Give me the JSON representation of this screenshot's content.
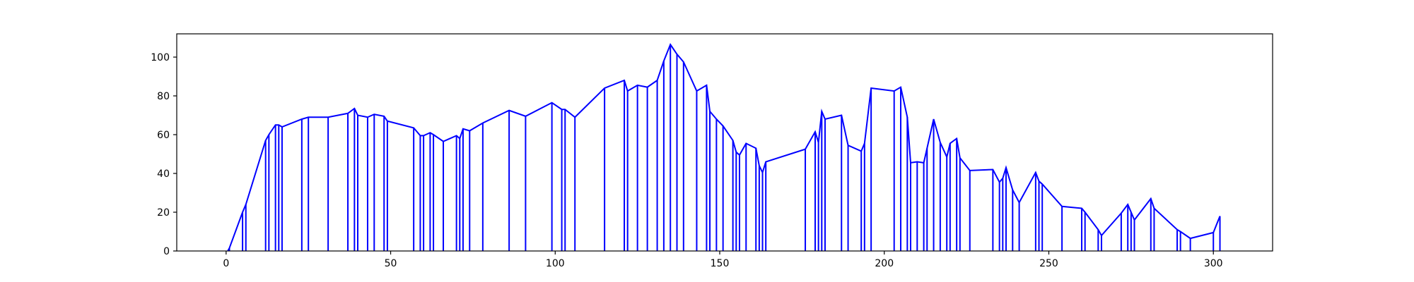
{
  "chart_data": {
    "type": "line",
    "title": "",
    "xlabel": "",
    "ylabel": "",
    "xlim": [
      -15,
      318
    ],
    "ylim": [
      0,
      112
    ],
    "xticks": [
      0,
      50,
      100,
      150,
      200,
      250,
      300
    ],
    "yticks": [
      0,
      20,
      40,
      60,
      80,
      100
    ],
    "grid": false,
    "legend": false,
    "series_color": "#0000ff",
    "drop_lines": true,
    "series": [
      {
        "points": [
          [
            0.5,
            0
          ],
          [
            1,
            1.5
          ],
          [
            5,
            20
          ],
          [
            6,
            24
          ],
          [
            12,
            57
          ],
          [
            13,
            60
          ],
          [
            15,
            65
          ],
          [
            16,
            65
          ],
          [
            17,
            64
          ],
          [
            23,
            68
          ],
          [
            25,
            69
          ],
          [
            31,
            69
          ],
          [
            37,
            71
          ],
          [
            39,
            73.5
          ],
          [
            40,
            70
          ],
          [
            43,
            69
          ],
          [
            45,
            70.5
          ],
          [
            48,
            69.5
          ],
          [
            49,
            67
          ],
          [
            57,
            63.5
          ],
          [
            59,
            59.5
          ],
          [
            60,
            59.5
          ],
          [
            62,
            61
          ],
          [
            63,
            60
          ],
          [
            66,
            56.5
          ],
          [
            70,
            59.5
          ],
          [
            71,
            58
          ],
          [
            72,
            63
          ],
          [
            74,
            62
          ],
          [
            78,
            66
          ],
          [
            86,
            72.5
          ],
          [
            91,
            69.5
          ],
          [
            99,
            76.5
          ],
          [
            102,
            73
          ],
          [
            103,
            73
          ],
          [
            106,
            69
          ],
          [
            115,
            84
          ],
          [
            121,
            88
          ],
          [
            122,
            82.5
          ],
          [
            125,
            85.5
          ],
          [
            128,
            84.5
          ],
          [
            131,
            88
          ],
          [
            133,
            98
          ],
          [
            135,
            106.5
          ],
          [
            137,
            101.5
          ],
          [
            139,
            97.5
          ],
          [
            143,
            82.5
          ],
          [
            146,
            85.5
          ],
          [
            147,
            72
          ],
          [
            149,
            68
          ],
          [
            151,
            64.5
          ],
          [
            154,
            57
          ],
          [
            155,
            51
          ],
          [
            156,
            49.5
          ],
          [
            158,
            55.5
          ],
          [
            161,
            53
          ],
          [
            162,
            44
          ],
          [
            163,
            40.5
          ],
          [
            164,
            46
          ],
          [
            176,
            52.5
          ],
          [
            179,
            61.5
          ],
          [
            180,
            56
          ],
          [
            181,
            72
          ],
          [
            182,
            68
          ],
          [
            187,
            70
          ],
          [
            189,
            54.5
          ],
          [
            193,
            51.5
          ],
          [
            194,
            55.5
          ],
          [
            196,
            84
          ],
          [
            203,
            82.5
          ],
          [
            205,
            84.5
          ],
          [
            207,
            69
          ],
          [
            208,
            45.5
          ],
          [
            210,
            46
          ],
          [
            212,
            45.5
          ],
          [
            213,
            53
          ],
          [
            215,
            68
          ],
          [
            217,
            56
          ],
          [
            219,
            48.5
          ],
          [
            220,
            55.5
          ],
          [
            222,
            58
          ],
          [
            223,
            48
          ],
          [
            226,
            41.5
          ],
          [
            233,
            42
          ],
          [
            235,
            35.5
          ],
          [
            236,
            37.5
          ],
          [
            237,
            43
          ],
          [
            239,
            31.5
          ],
          [
            241,
            25
          ],
          [
            246,
            40.5
          ],
          [
            247,
            36
          ],
          [
            248,
            34.5
          ],
          [
            254,
            23
          ],
          [
            260,
            22
          ],
          [
            261,
            20
          ],
          [
            265,
            11
          ],
          [
            266,
            8
          ],
          [
            272,
            19.5
          ],
          [
            274,
            24
          ],
          [
            275,
            20
          ],
          [
            276,
            16
          ],
          [
            281,
            27
          ],
          [
            282,
            22
          ],
          [
            289,
            11
          ],
          [
            290,
            10
          ],
          [
            293,
            6.5
          ],
          [
            300,
            9.5
          ],
          [
            302,
            18
          ]
        ]
      }
    ]
  }
}
